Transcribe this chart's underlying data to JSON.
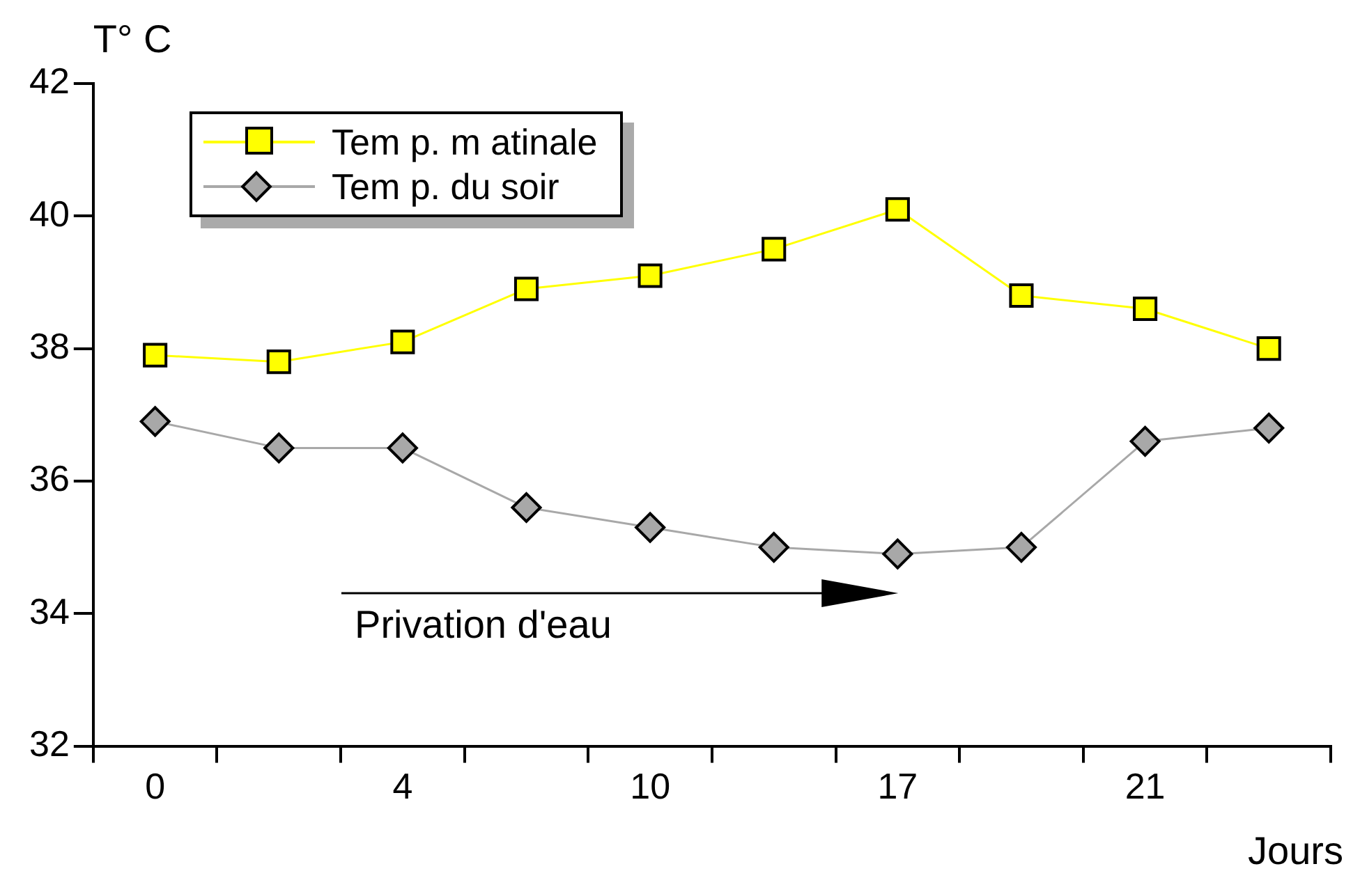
{
  "chart_data": {
    "type": "line",
    "xlabel": "Jours",
    "ylabel": "T° C",
    "categories": [
      "0",
      null,
      "4",
      null,
      "10",
      null,
      "17",
      null,
      "21",
      null
    ],
    "series": [
      {
        "name": "Tem p. m atinale",
        "color": "#ffff00",
        "marker": "square",
        "values": [
          37.9,
          37.8,
          38.1,
          38.9,
          39.1,
          39.5,
          40.1,
          38.8,
          38.6,
          38.0
        ]
      },
      {
        "name": "Tem p. du soir",
        "color": "#a8a8a8",
        "marker": "diamond",
        "values": [
          36.9,
          36.5,
          36.5,
          35.6,
          35.3,
          35.0,
          34.9,
          35.0,
          36.6,
          36.8
        ]
      }
    ],
    "ylim": [
      32,
      42
    ],
    "yticks": [
      32,
      34,
      36,
      38,
      40,
      42
    ],
    "grid": false,
    "legend": "top left",
    "annotations": [
      "Privation d'eau"
    ]
  }
}
